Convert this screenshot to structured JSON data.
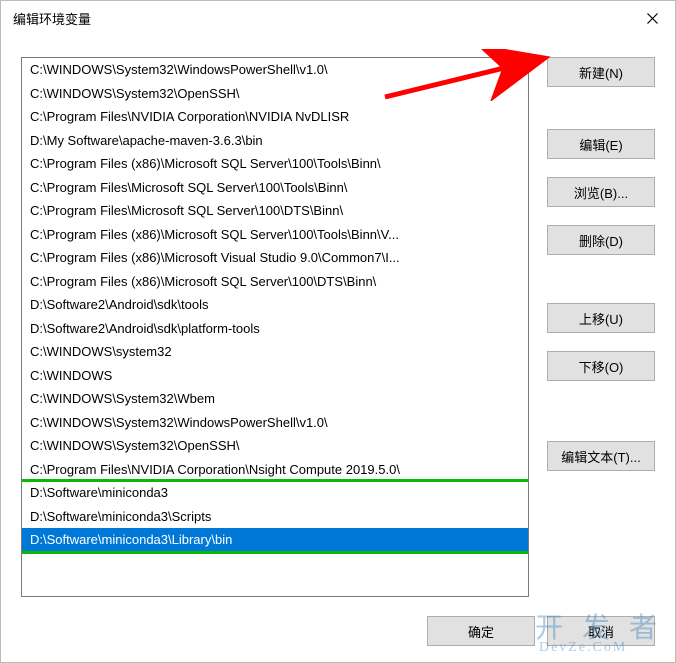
{
  "window": {
    "title": "编辑环境变量"
  },
  "list": {
    "items": [
      "C:\\WINDOWS\\System32\\WindowsPowerShell\\v1.0\\",
      "C:\\WINDOWS\\System32\\OpenSSH\\",
      "C:\\Program Files\\NVIDIA Corporation\\NVIDIA NvDLISR",
      "D:\\My Software\\apache-maven-3.6.3\\bin",
      "C:\\Program Files (x86)\\Microsoft SQL Server\\100\\Tools\\Binn\\",
      "C:\\Program Files\\Microsoft SQL Server\\100\\Tools\\Binn\\",
      "C:\\Program Files\\Microsoft SQL Server\\100\\DTS\\Binn\\",
      "C:\\Program Files (x86)\\Microsoft SQL Server\\100\\Tools\\Binn\\V...",
      "C:\\Program Files (x86)\\Microsoft Visual Studio 9.0\\Common7\\I...",
      "C:\\Program Files (x86)\\Microsoft SQL Server\\100\\DTS\\Binn\\",
      "D:\\Software2\\Android\\sdk\\tools",
      "D:\\Software2\\Android\\sdk\\platform-tools",
      "C:\\WINDOWS\\system32",
      "C:\\WINDOWS",
      "C:\\WINDOWS\\System32\\Wbem",
      "C:\\WINDOWS\\System32\\WindowsPowerShell\\v1.0\\",
      "C:\\WINDOWS\\System32\\OpenSSH\\",
      "C:\\Program Files\\NVIDIA Corporation\\Nsight Compute 2019.5.0\\",
      "D:\\Software\\miniconda3",
      "D:\\Software\\miniconda3\\Scripts",
      "D:\\Software\\miniconda3\\Library\\bin"
    ],
    "selected_index": 20
  },
  "buttons": {
    "new": "新建(N)",
    "edit": "编辑(E)",
    "browse": "浏览(B)...",
    "delete": "删除(D)",
    "move_up": "上移(U)",
    "move_down": "下移(O)",
    "edit_text": "编辑文本(T)...",
    "ok": "确定",
    "cancel": "取消"
  },
  "annotation": {
    "arrow_color": "#ff0000",
    "green_box_color": "#08b908",
    "green_box_rows": [
      18,
      19,
      20
    ]
  },
  "watermark": {
    "main": "开 发 者",
    "sub": "DevZe.CoM"
  },
  "colors": {
    "button_bg": "#e1e1e1",
    "button_border": "#adadad",
    "selected_bg": "#0078d7",
    "selected_fg": "#ffffff",
    "list_border": "#7a7a7a",
    "window_bg": "#ffffff"
  }
}
